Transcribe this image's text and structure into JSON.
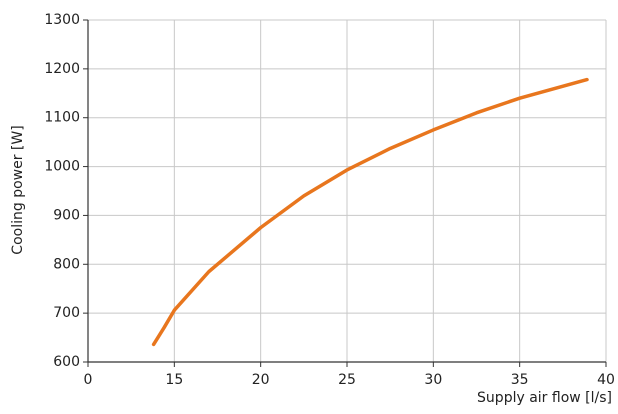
{
  "chart_data": {
    "type": "line",
    "x_label": "Supply air flow [l/s]",
    "y_label": "Cooling power [W]",
    "x": [
      13.8,
      14.4,
      15,
      17,
      20,
      22.5,
      25,
      27.5,
      30,
      32.5,
      35,
      38.9
    ],
    "series": [
      {
        "name": "Cooling power",
        "color": "#e8761e",
        "values": [
          636,
          670,
          706,
          785,
          875,
          940,
          993,
          1037,
          1075,
          1110,
          1140,
          1178
        ]
      }
    ],
    "xlim": [
      10,
      40
    ],
    "xticks": [
      {
        "value": 10,
        "label": "0"
      },
      15,
      20,
      25,
      30,
      35,
      40
    ],
    "ylim": [
      600,
      1300
    ],
    "yticks": [
      600,
      700,
      800,
      900,
      1000,
      1100,
      1200,
      1300
    ],
    "grid": true
  }
}
